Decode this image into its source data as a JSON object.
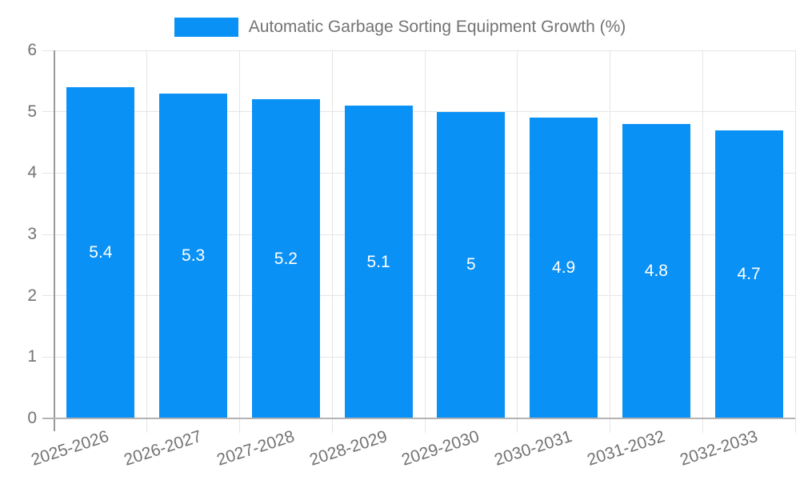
{
  "legend": {
    "label": "Automatic Garbage Sorting Equipment Growth (%)"
  },
  "colors": {
    "bar": "#0a91f5",
    "bar_label": "#ffffff",
    "grid": "#e5e5e5",
    "y_axis": "#999999",
    "x_axis": "#b3b3b3",
    "tick_text": "#737373",
    "legend_text": "#737373",
    "background": "#ffffff"
  },
  "chart_data": {
    "type": "bar",
    "title": "Automatic Garbage Sorting Equipment Growth (%)",
    "categories": [
      "2025-2026",
      "2026-2027",
      "2027-2028",
      "2028-2029",
      "2029-2030",
      "2030-2031",
      "2031-2032",
      "2032-2033"
    ],
    "values": [
      5.4,
      5.3,
      5.2,
      5.1,
      5,
      4.9,
      4.8,
      4.7
    ],
    "value_labels": [
      "5.4",
      "5.3",
      "5.2",
      "5.1",
      "5",
      "4.9",
      "4.8",
      "4.7"
    ],
    "xlabel": "",
    "ylabel": "",
    "ylim": [
      0,
      6
    ],
    "yticks": [
      0,
      1,
      2,
      3,
      4,
      5,
      6
    ],
    "ytick_labels": [
      "0",
      "1",
      "2",
      "3",
      "4",
      "5",
      "6"
    ],
    "grid": true,
    "legend_position": "top",
    "bar_label_position": "center",
    "x_tick_rotation_deg": -18
  }
}
